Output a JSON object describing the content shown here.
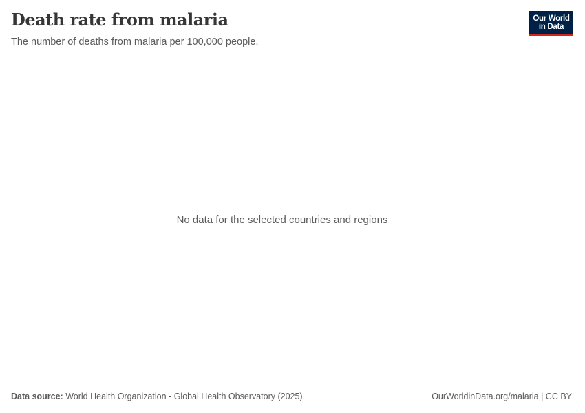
{
  "header": {
    "title": "Death rate from malaria",
    "subtitle": "The number of deaths from malaria per 100,000 people.",
    "logo_line1": "Our World",
    "logo_line2": "in Data",
    "logo_colors": {
      "background": "#002147",
      "accent": "#ce261e"
    }
  },
  "chart_data": {
    "type": "line",
    "title": "Death rate from malaria",
    "subtitle": "The number of deaths from malaria per 100,000 people.",
    "series": [],
    "message": "No data for the selected countries and regions"
  },
  "footer": {
    "source_label": "Data source:",
    "source_text": "World Health Organization - Global Health Observatory (2025)",
    "link": "OurWorldinData.org/malaria",
    "license": "CC BY"
  }
}
